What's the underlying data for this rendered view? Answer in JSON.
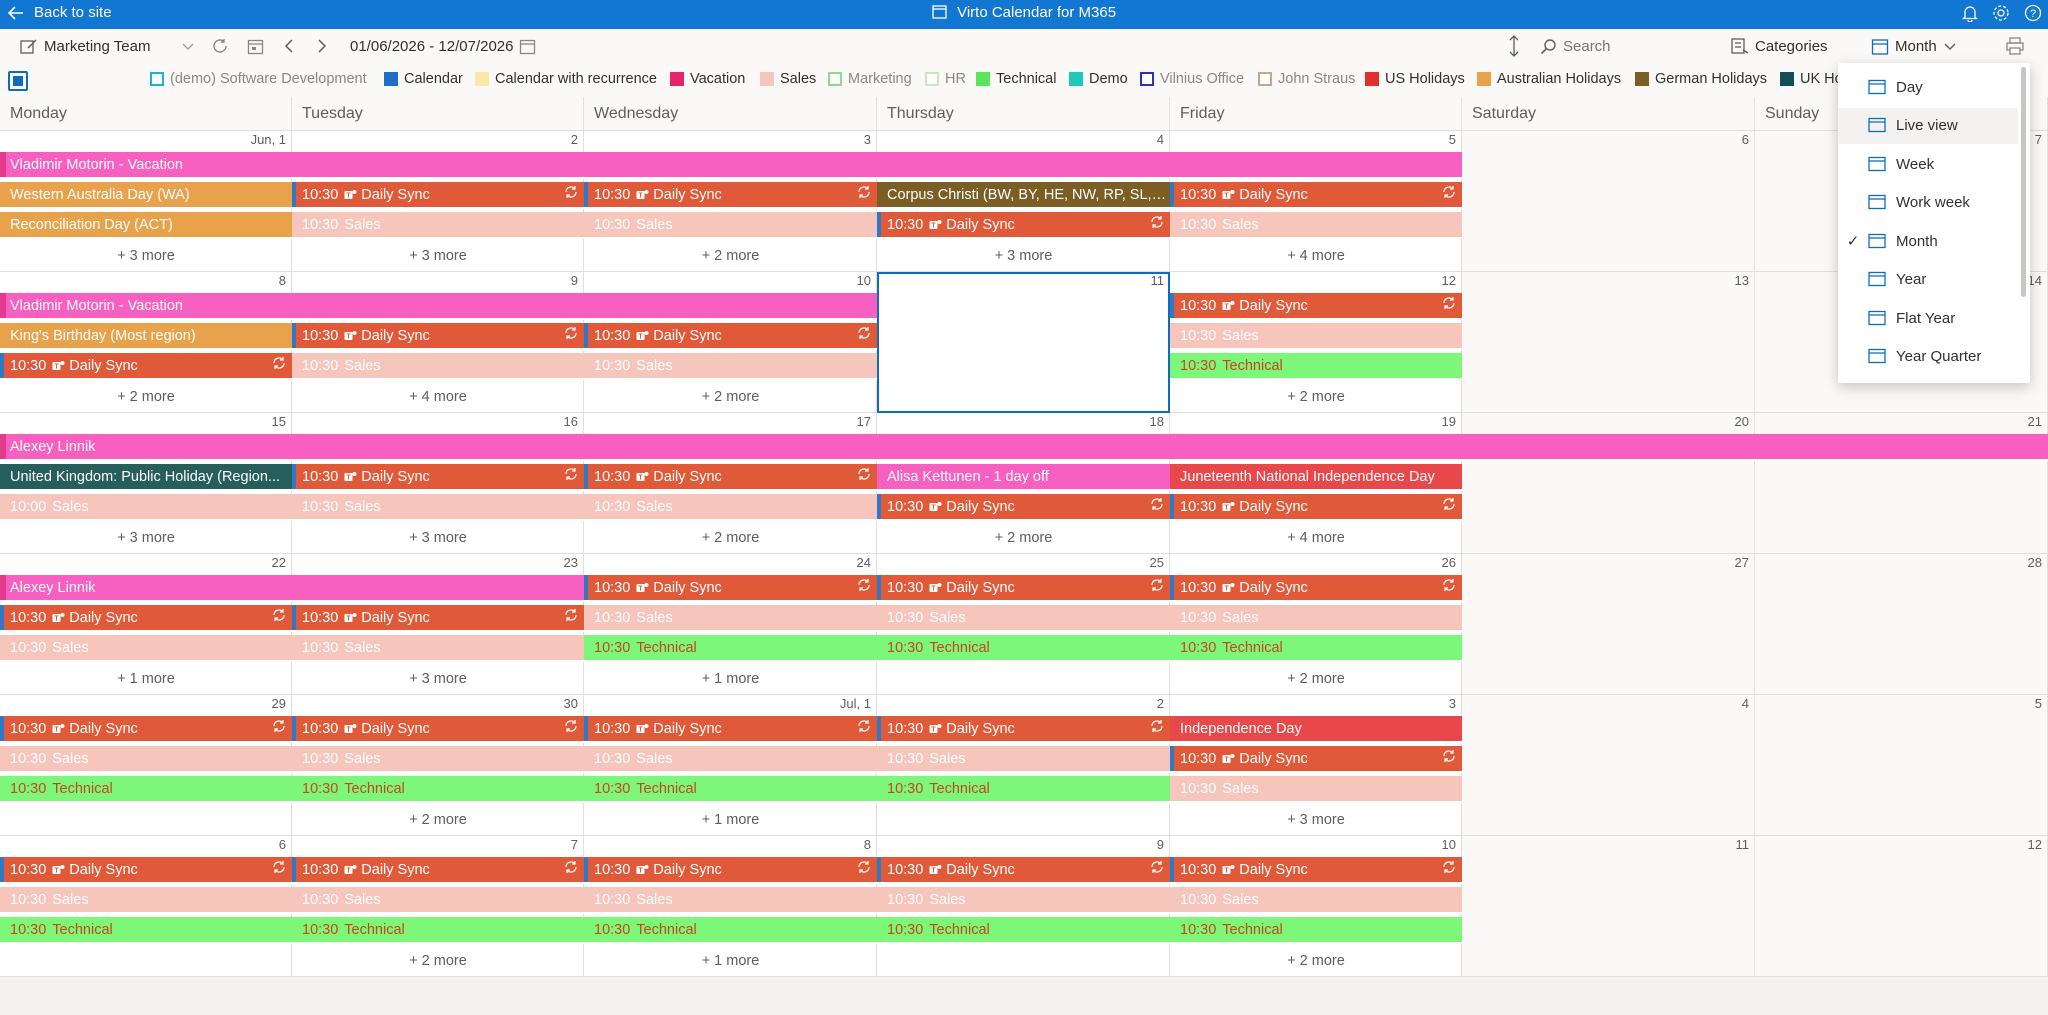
{
  "topbar": {
    "back_label": "Back to site",
    "app_title": "Virto Calendar for M365"
  },
  "toolbar": {
    "calendar_name": "Marketing Team",
    "date_range": "01/06/2026 - 12/07/2026",
    "search_placeholder": "Search",
    "categories_label": "Categories",
    "view_label": "Month"
  },
  "legend": [
    {
      "label": "(demo) Software Development",
      "color": "#1fb0d6",
      "style": "outline"
    },
    {
      "label": "Calendar",
      "color": "#1e6fc4",
      "style": "fill"
    },
    {
      "label": "Calendar with recurrence",
      "color": "#fbe9a8",
      "style": "fill"
    },
    {
      "label": "Vacation",
      "color": "#e3256b",
      "style": "fill"
    },
    {
      "label": "Sales",
      "color": "#f6c5bb",
      "style": "fill"
    },
    {
      "label": "Marketing",
      "color": "#8fd88c",
      "style": "outline"
    },
    {
      "label": "HR",
      "color": "#c8eab9",
      "style": "outline"
    },
    {
      "label": "Technical",
      "color": "#5ce45a",
      "style": "fill"
    },
    {
      "label": "Demo",
      "color": "#1ec9b8",
      "style": "fill"
    },
    {
      "label": "Vilnius Office",
      "color": "#2a34b8",
      "style": "outline"
    },
    {
      "label": "John Straus",
      "color": "#c9a48a",
      "style": "outline"
    },
    {
      "label": "US Holidays",
      "color": "#e12e2e",
      "style": "fill"
    },
    {
      "label": "Australian Holidays",
      "color": "#e9a24c",
      "style": "fill"
    },
    {
      "label": "German Holidays",
      "color": "#7a5e24",
      "style": "fill"
    },
    {
      "label": "UK Ho",
      "color": "#115058",
      "style": "fill"
    }
  ],
  "weekdays": [
    "Monday",
    "Tuesday",
    "Wednesday",
    "Thursday",
    "Friday",
    "Saturday",
    "Sunday"
  ],
  "weeks": [
    [
      "Jun, 1",
      "2",
      "3",
      "4",
      "5",
      "6",
      "7"
    ],
    [
      "8",
      "9",
      "10",
      "11",
      "12",
      "13",
      "14"
    ],
    [
      "15",
      "16",
      "17",
      "18",
      "19",
      "20",
      "21"
    ],
    [
      "22",
      "23",
      "24",
      "25",
      "26",
      "27",
      "28"
    ],
    [
      "29",
      "30",
      "Jul, 1",
      "2",
      "3",
      "4",
      "5"
    ],
    [
      "6",
      "7",
      "8",
      "9",
      "10",
      "11",
      "12"
    ]
  ],
  "events": {
    "vac1": "Vladimir Motorin - Vacation",
    "wa_day": "Western Australia Day (WA)",
    "recon_day": "Reconciliation Day (ACT)",
    "corpus": "Corpus Christi (BW, BY, HE, NW, RP, SL, S...",
    "kings": "King's Birthday (Most region)",
    "alexey": "Alexey Linnik",
    "uk_holiday": "United Kingdom: Public Holiday (Region...",
    "alisa": "Alisa Kettunen - 1 day off",
    "juneteenth": "Juneteenth National Independence Day",
    "independence": "Independence Day",
    "daily_sync": "Daily Sync",
    "sales": "Sales",
    "technical": "Technical",
    "t1030": "10:30",
    "t1000": "10:00"
  },
  "more": {
    "m3": "+ 3 more",
    "m2": "+ 2 more",
    "m4": "+ 4 more",
    "m1": "+ 1 more"
  },
  "view_menu": [
    {
      "label": "Day",
      "icon": "calendar-day-icon",
      "checked": false
    },
    {
      "label": "Live view",
      "icon": "live-view-icon",
      "checked": false
    },
    {
      "label": "Week",
      "icon": "calendar-week-icon",
      "checked": false
    },
    {
      "label": "Work week",
      "icon": "calendar-workweek-icon",
      "checked": false
    },
    {
      "label": "Month",
      "icon": "calendar-month-icon",
      "checked": true
    },
    {
      "label": "Year",
      "icon": "calendar-year-icon",
      "checked": false
    },
    {
      "label": "Flat Year",
      "icon": "flat-year-icon",
      "checked": false
    },
    {
      "label": "Year Quarter",
      "icon": "year-quarter-icon",
      "checked": false
    }
  ],
  "colors": {
    "topbar": "#1277d2",
    "daily_sync": "#e05a3a",
    "sales": "#f6c5bb",
    "technical": "#7cf77a",
    "vacation": "#f760c0",
    "australian": "#e9a24c",
    "german": "#7a5e24",
    "uk": "#265e5c",
    "us": "#e9484a",
    "selection": "#0f6cbd"
  }
}
